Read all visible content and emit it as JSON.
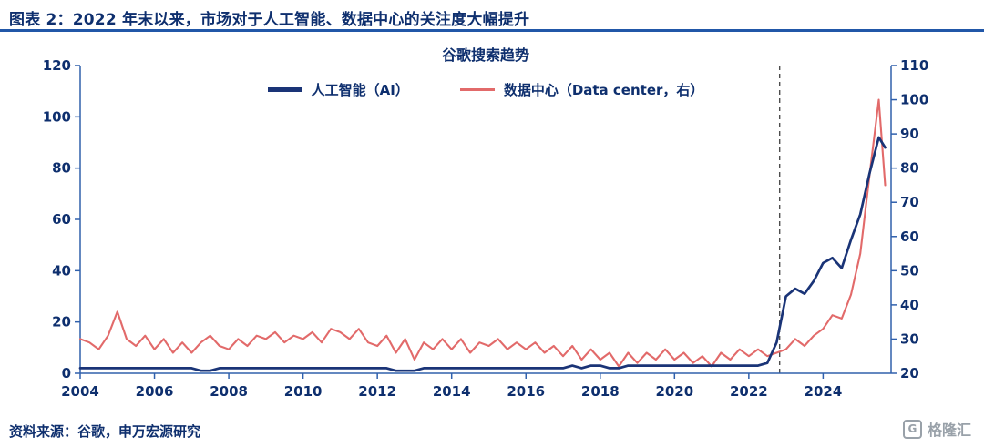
{
  "header": {
    "title": "图表 2：2022 年末以来，市场对于人工智能、数据中心的关注度大幅提升"
  },
  "footer": {
    "source": "资料来源：谷歌，申万宏源研究"
  },
  "logo": {
    "mark": "G",
    "text": "格隆汇"
  },
  "theme": {
    "title_color": "#0E2F6E",
    "rule_color": "#2157A8",
    "axis_color": "#3060AC",
    "label_color": "#0E2F6E",
    "annotation_color": "#4D4D4D"
  },
  "chart_data": {
    "type": "line",
    "title": "谷歌搜索趋势",
    "legend_position": "top-center",
    "grid": false,
    "x_axis": {
      "min": 2004,
      "max": 2025.83,
      "ticks": [
        2004,
        2006,
        2008,
        2010,
        2012,
        2014,
        2016,
        2018,
        2020,
        2022,
        2024
      ]
    },
    "left_axis": {
      "min": 0,
      "max": 120,
      "ticks": [
        0,
        20,
        40,
        60,
        80,
        100,
        120
      ]
    },
    "right_axis": {
      "min": 20,
      "max": 110,
      "ticks": [
        20,
        30,
        40,
        50,
        60,
        70,
        80,
        90,
        100,
        110
      ]
    },
    "annotation": {
      "type": "vline",
      "x": 2022.83,
      "style": "dashed"
    },
    "x": [
      2004,
      2004.25,
      2004.5,
      2004.75,
      2005,
      2005.25,
      2005.5,
      2005.75,
      2006,
      2006.25,
      2006.5,
      2006.75,
      2007,
      2007.25,
      2007.5,
      2007.75,
      2008,
      2008.25,
      2008.5,
      2008.75,
      2009,
      2009.25,
      2009.5,
      2009.75,
      2010,
      2010.25,
      2010.5,
      2010.75,
      2011,
      2011.25,
      2011.5,
      2011.75,
      2012,
      2012.25,
      2012.5,
      2012.75,
      2013,
      2013.25,
      2013.5,
      2013.75,
      2014,
      2014.25,
      2014.5,
      2014.75,
      2015,
      2015.25,
      2015.5,
      2015.75,
      2016,
      2016.25,
      2016.5,
      2016.75,
      2017,
      2017.25,
      2017.5,
      2017.75,
      2018,
      2018.25,
      2018.5,
      2018.75,
      2019,
      2019.25,
      2019.5,
      2019.75,
      2020,
      2020.25,
      2020.5,
      2020.75,
      2021,
      2021.25,
      2021.5,
      2021.75,
      2022,
      2022.25,
      2022.5,
      2022.75,
      2023,
      2023.25,
      2023.5,
      2023.75,
      2024,
      2024.25,
      2024.5,
      2024.75,
      2025,
      2025.25,
      2025.5,
      2025.67
    ],
    "series": [
      {
        "name": "人工智能（AI）",
        "axis": "left",
        "color": "#1A3477",
        "values": [
          2,
          2,
          2,
          2,
          2,
          2,
          2,
          2,
          2,
          2,
          2,
          2,
          2,
          1,
          1,
          2,
          2,
          2,
          2,
          2,
          2,
          2,
          2,
          2,
          2,
          2,
          2,
          2,
          2,
          2,
          2,
          2,
          2,
          2,
          1,
          1,
          1,
          2,
          2,
          2,
          2,
          2,
          2,
          2,
          2,
          2,
          2,
          2,
          2,
          2,
          2,
          2,
          2,
          3,
          2,
          3,
          3,
          2,
          2,
          3,
          3,
          3,
          3,
          3,
          3,
          3,
          3,
          3,
          3,
          3,
          3,
          3,
          3,
          3,
          4,
          12,
          30,
          33,
          31,
          36,
          43,
          45,
          41,
          52,
          62,
          78,
          92,
          88
        ]
      },
      {
        "name": "数据中心（Data center，右）",
        "axis": "right",
        "color": "#E26A6A",
        "values": [
          30,
          29,
          27,
          31,
          38,
          30,
          28,
          31,
          27,
          30,
          26,
          29,
          26,
          29,
          31,
          28,
          27,
          30,
          28,
          31,
          30,
          32,
          29,
          31,
          30,
          32,
          29,
          33,
          32,
          30,
          33,
          29,
          28,
          31,
          26,
          30,
          24,
          29,
          27,
          30,
          27,
          30,
          26,
          29,
          28,
          30,
          27,
          29,
          27,
          29,
          26,
          28,
          25,
          28,
          24,
          27,
          24,
          26,
          22,
          26,
          23,
          26,
          24,
          27,
          24,
          26,
          23,
          25,
          22,
          26,
          24,
          27,
          25,
          27,
          25,
          26,
          27,
          30,
          28,
          31,
          33,
          37,
          36,
          43,
          55,
          78,
          100,
          75
        ]
      }
    ]
  }
}
